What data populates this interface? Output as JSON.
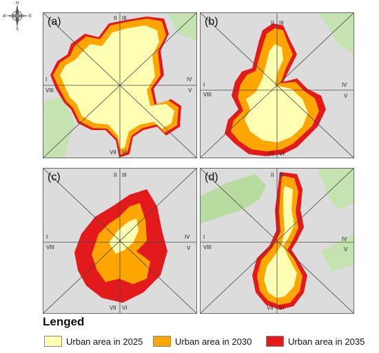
{
  "compass": {
    "n": "N",
    "s": "S",
    "e": "E",
    "w": "W"
  },
  "panels": [
    {
      "label": "(a)"
    },
    {
      "label": "(b)"
    },
    {
      "label": "(c)"
    },
    {
      "label": "(d)"
    }
  ],
  "sectors": {
    "I": "I",
    "II": "II",
    "III": "III",
    "IV": "IV",
    "V": "V",
    "VI": "VI",
    "VII": "VII",
    "VIII": "VIII"
  },
  "legend": {
    "title": "Lenged",
    "items": [
      {
        "label": "Urban area in 2025",
        "color": "#ffffb3"
      },
      {
        "label": "Urban area in 2030",
        "color": "#ffa500"
      },
      {
        "label": "Urban area in 2035",
        "color": "#e31a1c"
      }
    ]
  },
  "colors": {
    "background": "#dcdcdc",
    "vegetation": "#b8dca0",
    "lines": "#444444"
  }
}
